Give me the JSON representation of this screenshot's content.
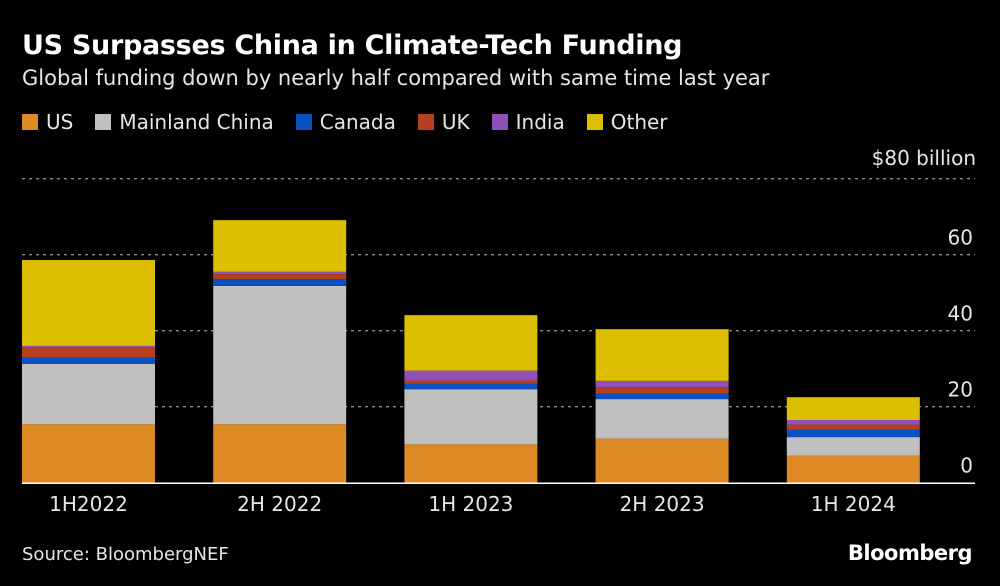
{
  "chart_data": {
    "type": "bar",
    "stacked": true,
    "title": "US Surpasses China in Climate-Tech Funding",
    "subtitle": "Global funding down by nearly half compared with same time last year",
    "unit_label": "$80 billion",
    "categories": [
      "1H2022",
      "2H 2022",
      "1H 2023",
      "2H 2023",
      "1H 2024"
    ],
    "series": [
      {
        "name": "US",
        "color": "#dd8a24",
        "values": [
          15.4,
          15.4,
          10.1,
          11.6,
          7.1
        ]
      },
      {
        "name": "Mainland China",
        "color": "#c0c0c0",
        "values": [
          15.9,
          36.4,
          14.5,
          10.4,
          4.9
        ]
      },
      {
        "name": "Canada",
        "color": "#0a50c0",
        "values": [
          1.6,
          1.8,
          1.4,
          1.4,
          1.9
        ]
      },
      {
        "name": "UK",
        "color": "#b5401e",
        "values": [
          2.6,
          1.3,
          0.9,
          1.7,
          1.4
        ]
      },
      {
        "name": "India",
        "color": "#9050b8",
        "values": [
          0.5,
          0.6,
          2.6,
          1.7,
          1.2
        ]
      },
      {
        "name": "Other",
        "color": "#dcbf00",
        "values": [
          22.6,
          13.6,
          14.6,
          13.6,
          6.0
        ]
      }
    ],
    "yticks": [
      "0",
      "20",
      "40",
      "60"
    ],
    "ylim": [
      0,
      80
    ],
    "grid": true,
    "legend_position": "top-left"
  },
  "source": "Source: BloombergNEF",
  "logo": "Bloomberg"
}
